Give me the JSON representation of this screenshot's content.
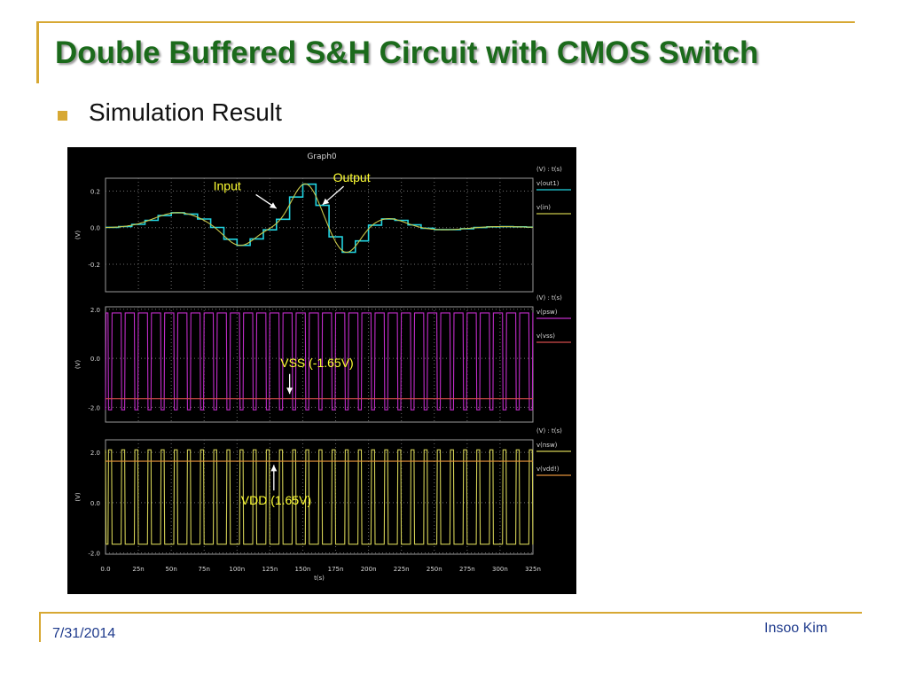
{
  "slide": {
    "title": "Double Buffered S&H Circuit with CMOS Switch",
    "bullet": "Simulation Result",
    "footer_date": "7/31/2014",
    "footer_author": "Insoo Kim"
  },
  "colors": {
    "accent": "#d7a833",
    "title": "#1b6a1b",
    "out1": "#22d3e0",
    "in": "#c9c84a",
    "psw": "#c02cc8",
    "vss": "#d24b4b",
    "nsw": "#d2cf55",
    "vdd": "#e0903a",
    "annotation": "#ffff33"
  },
  "chart_data": {
    "type": "line",
    "title": "Graph0",
    "xlabel": "t(s)",
    "xlim_ns": [
      0,
      325
    ],
    "x_ticks": [
      "0.0",
      "25n",
      "50n",
      "75n",
      "100n",
      "125n",
      "150n",
      "175n",
      "200n",
      "225n",
      "250n",
      "275n",
      "300n",
      "325n"
    ],
    "grid": true,
    "panels": [
      {
        "ylabel": "(V)",
        "legend_header": "(V) : t(s)",
        "ylim": [
          -0.35,
          0.27
        ],
        "y_ticks": [
          0.2,
          0.0,
          -0.2
        ],
        "y_tick_labels": [
          "0.2",
          "0.0",
          "-0.2"
        ],
        "series": [
          {
            "name": "v(out1)",
            "color": "#22d3e0",
            "kind": "held",
            "step_ns": 10
          },
          {
            "name": "v(in)",
            "color": "#c9c84a",
            "kind": "smooth"
          }
        ],
        "input_wave": {
          "sines": [
            {
              "amp": -0.19,
              "center_ns": 130,
              "sigma_ns": 24
            },
            {
              "amp": 0.26,
              "center_ns": 155,
              "sigma_ns": 26
            }
          ],
          "gaussians": [
            {
              "amp": 0.082,
              "center_ns": 55,
              "sigma_ns": 26
            },
            {
              "amp": -0.1,
              "center_ns": 102,
              "sigma_ns": 16
            },
            {
              "amp": 0.24,
              "center_ns": 152,
              "sigma_ns": 15
            },
            {
              "amp": -0.14,
              "center_ns": 183,
              "sigma_ns": 14
            },
            {
              "amp": 0.05,
              "center_ns": 215,
              "sigma_ns": 18
            },
            {
              "amp": -0.012,
              "center_ns": 258,
              "sigma_ns": 22
            },
            {
              "amp": 0.006,
              "center_ns": 300,
              "sigma_ns": 25
            }
          ]
        },
        "annotations": [
          {
            "text": "Input",
            "x_ns": 82,
            "y": 0.205,
            "arrow_to_ns": 130,
            "arrow_to_y": 0.105
          },
          {
            "text": "Output",
            "x_ns": 173,
            "y": 0.25,
            "arrow_to_ns": 165,
            "arrow_to_y": 0.125
          }
        ]
      },
      {
        "ylabel": "(V)",
        "legend_header": "(V) : t(s)",
        "ylim": [
          -2.6,
          2.1
        ],
        "y_ticks": [
          2.0,
          0.0,
          -2.0
        ],
        "y_tick_labels": [
          "2.0",
          "0.0",
          "-2.0"
        ],
        "series": [
          {
            "name": "v(psw)",
            "color": "#c02cc8",
            "kind": "pulse",
            "period_ns": 10,
            "high": 1.85,
            "low": -2.1,
            "duty": 0.62,
            "invert": false
          },
          {
            "name": "v(vss)",
            "color": "#d24b4b",
            "kind": "constant",
            "value": -1.65
          }
        ],
        "annotations": [
          {
            "text": "VSS (-1.65V)",
            "x_ns": 133,
            "y": -0.35,
            "arrow_to_ns": 140,
            "arrow_to_y": -1.45
          }
        ]
      },
      {
        "ylabel": "(V)",
        "legend_header": "(V) : t(s)",
        "ylim": [
          -2.05,
          2.5
        ],
        "y_ticks": [
          2.0,
          0.0,
          -2.0
        ],
        "y_tick_labels": [
          "2.0",
          "0.0",
          "-2.0"
        ],
        "series": [
          {
            "name": "v(nsw)",
            "color": "#d2cf55",
            "kind": "pulse",
            "period_ns": 10,
            "high": 2.1,
            "low": -1.65,
            "duty": 0.62,
            "invert": true
          },
          {
            "name": "v(vdd!)",
            "color": "#e0903a",
            "kind": "constant",
            "value": 1.65
          }
        ],
        "annotations": [
          {
            "text": "VDD (1.65V)",
            "x_ns": 103,
            "y": -0.08,
            "arrow_to_ns": 128,
            "arrow_to_y": 1.5
          }
        ]
      }
    ]
  }
}
